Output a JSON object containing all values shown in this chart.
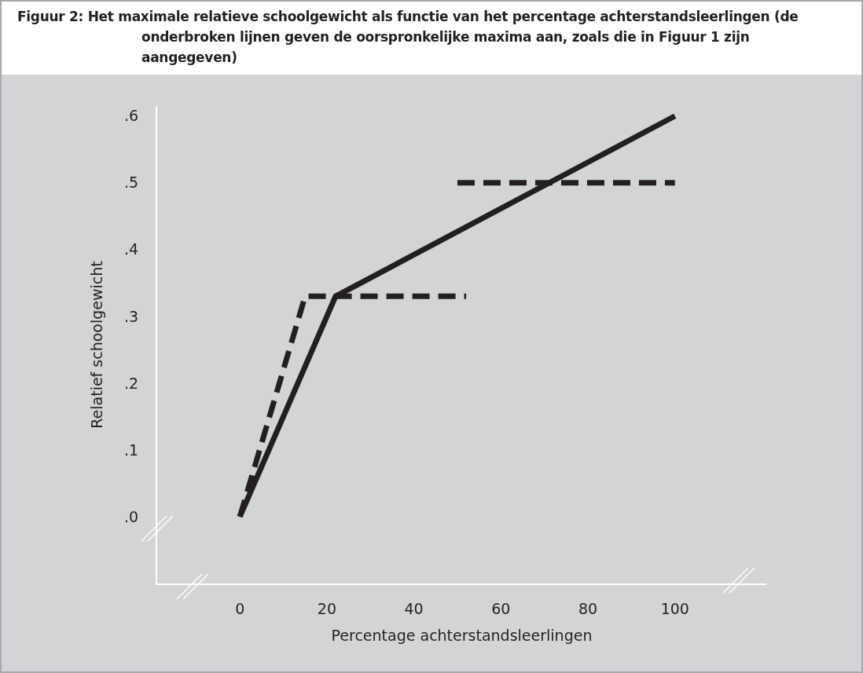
{
  "chart_data": {
    "type": "line",
    "title": "Figuur 2: Het maximale relatieve schoolgewicht als functie van het percentage achterstandsleerlingen (de onderbroken lijnen geven de oorspronkelijke maxima aan, zoals die in Figuur 1 zijn aangegeven)",
    "xlabel": "Percentage achterstandsleerlingen",
    "ylabel": "Relatief schoolgewicht",
    "series": [
      {
        "color": "#231f20",
        "line_style": "solid",
        "x": [
          0,
          22,
          100
        ],
        "values": [
          0,
          0.33,
          0.6
        ]
      },
      {
        "color": "#231f20",
        "line_style": "dashed",
        "x": [
          0,
          15,
          52
        ],
        "values": [
          0,
          0.33,
          0.33
        ]
      },
      {
        "color": "#231f20",
        "line_style": "dashed",
        "x": [
          50,
          100
        ],
        "values": [
          0.5,
          0.5
        ]
      }
    ],
    "xlim": [
      -19,
      121
    ],
    "xticks": [
      0,
      20,
      40,
      60,
      80,
      100
    ],
    "ylim": [
      -0.1,
      0.615
    ],
    "yticks": [
      {
        "value": 0,
        "label": ".0"
      },
      {
        "value": 0.1,
        "label": ".1"
      },
      {
        "value": 0.2,
        "label": ".2"
      },
      {
        "value": 0.3,
        "label": ".3"
      },
      {
        "value": 0.4,
        "label": ".4"
      },
      {
        "value": 0.5,
        "label": ".5"
      },
      {
        "value": 0.6,
        "label": ".6"
      }
    ],
    "grid": false,
    "marker": "none"
  }
}
